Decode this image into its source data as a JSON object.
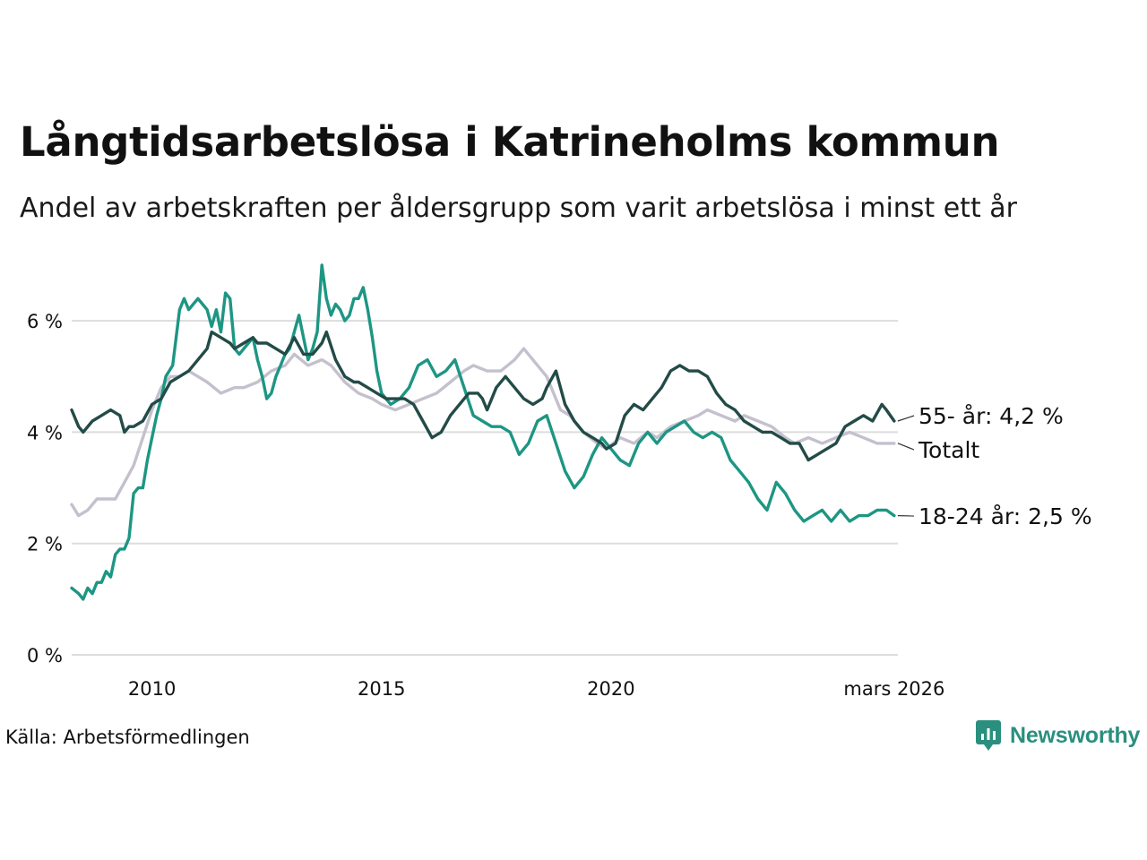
{
  "header": {
    "title": "Långtidsarbetslösa i Katrineholms kommun",
    "subtitle": "Andel av arbetskraften per åldersgrupp som varit arbetslösa i minst ett år"
  },
  "footer": {
    "source": "Källa: Arbetsförmedlingen",
    "brand": "Newsworthy"
  },
  "colors": {
    "total": "#c4c0cd",
    "age55": "#234b47",
    "age1824": "#1d9683",
    "grid": "#dddddd",
    "brand": "#2a8f7e"
  },
  "chart_data": {
    "type": "line",
    "title": "Långtidsarbetslösa i Katrineholms kommun",
    "xlabel": "",
    "ylabel": "",
    "xlim": [
      2008.25,
      2026.25
    ],
    "ylim": [
      0,
      7
    ],
    "grid": true,
    "legend": "direct labels at right end",
    "y_ticks": [
      {
        "value": 0,
        "label": "0 %"
      },
      {
        "value": 2,
        "label": "2 %"
      },
      {
        "value": 4,
        "label": "4 %"
      },
      {
        "value": 6,
        "label": "6 %"
      }
    ],
    "x_ticks": [
      {
        "value": 2010,
        "label": "2010"
      },
      {
        "value": 2015,
        "label": "2015"
      },
      {
        "value": 2020,
        "label": "2020"
      },
      {
        "value": 2026.17,
        "label": "mars 2026"
      }
    ],
    "series": [
      {
        "name": "Totalt",
        "label": "Totalt",
        "color": "#c4c0cd",
        "x": [
          2008.25,
          2008.4,
          2008.6,
          2008.8,
          2009.0,
          2009.2,
          2009.4,
          2009.6,
          2009.8,
          2010.0,
          2010.2,
          2010.4,
          2010.6,
          2010.8,
          2011.0,
          2011.2,
          2011.5,
          2011.8,
          2012.0,
          2012.3,
          2012.6,
          2012.9,
          2013.1,
          2013.4,
          2013.7,
          2013.9,
          2014.2,
          2014.5,
          2014.8,
          2015.0,
          2015.3,
          2015.6,
          2015.9,
          2016.2,
          2016.5,
          2016.8,
          2017.0,
          2017.3,
          2017.6,
          2017.9,
          2018.1,
          2018.4,
          2018.6,
          2018.9,
          2019.1,
          2019.4,
          2019.7,
          2019.9,
          2020.2,
          2020.5,
          2020.8,
          2021.0,
          2021.3,
          2021.6,
          2021.9,
          2022.1,
          2022.4,
          2022.7,
          2022.9,
          2023.2,
          2023.5,
          2023.8,
          2024.0,
          2024.3,
          2024.6,
          2024.9,
          2025.2,
          2025.5,
          2025.8,
          2026.0,
          2026.17
        ],
        "values": [
          2.7,
          2.5,
          2.6,
          2.8,
          2.8,
          2.8,
          3.1,
          3.4,
          3.9,
          4.4,
          4.8,
          5.0,
          5.0,
          5.1,
          5.0,
          4.9,
          4.7,
          4.8,
          4.8,
          4.9,
          5.1,
          5.2,
          5.4,
          5.2,
          5.3,
          5.2,
          4.9,
          4.7,
          4.6,
          4.5,
          4.4,
          4.5,
          4.6,
          4.7,
          4.9,
          5.1,
          5.2,
          5.1,
          5.1,
          5.3,
          5.5,
          5.2,
          5.0,
          4.4,
          4.3,
          4.0,
          3.8,
          3.7,
          3.9,
          3.8,
          4.0,
          3.9,
          4.1,
          4.2,
          4.3,
          4.4,
          4.3,
          4.2,
          4.3,
          4.2,
          4.1,
          3.9,
          3.8,
          3.9,
          3.8,
          3.9,
          4.0,
          3.9,
          3.8,
          3.8,
          3.8
        ]
      },
      {
        "name": "55- år",
        "label": "55- år: 4,2 %",
        "color": "#234b47",
        "x": [
          2008.25,
          2008.4,
          2008.5,
          2008.7,
          2008.9,
          2009.1,
          2009.3,
          2009.4,
          2009.5,
          2009.6,
          2009.8,
          2010.0,
          2010.2,
          2010.4,
          2010.6,
          2010.8,
          2011.0,
          2011.2,
          2011.3,
          2011.5,
          2011.7,
          2011.8,
          2012.0,
          2012.2,
          2012.3,
          2012.5,
          2012.7,
          2012.9,
          2013.1,
          2013.3,
          2013.5,
          2013.7,
          2013.8,
          2014.0,
          2014.2,
          2014.4,
          2014.5,
          2014.7,
          2014.9,
          2015.1,
          2015.3,
          2015.5,
          2015.7,
          2015.9,
          2016.1,
          2016.3,
          2016.5,
          2016.7,
          2016.9,
          2017.1,
          2017.2,
          2017.3,
          2017.5,
          2017.7,
          2017.9,
          2018.1,
          2018.3,
          2018.5,
          2018.6,
          2018.8,
          2019.0,
          2019.2,
          2019.4,
          2019.6,
          2019.8,
          2019.9,
          2020.1,
          2020.3,
          2020.5,
          2020.7,
          2020.9,
          2021.1,
          2021.3,
          2021.5,
          2021.7,
          2021.9,
          2022.1,
          2022.3,
          2022.5,
          2022.7,
          2022.9,
          2023.1,
          2023.3,
          2023.5,
          2023.7,
          2023.9,
          2024.1,
          2024.3,
          2024.5,
          2024.7,
          2024.9,
          2025.1,
          2025.3,
          2025.5,
          2025.7,
          2025.9,
          2026.0,
          2026.17
        ],
        "values": [
          4.4,
          4.1,
          4.0,
          4.2,
          4.3,
          4.4,
          4.3,
          4.0,
          4.1,
          4.1,
          4.2,
          4.5,
          4.6,
          4.9,
          5.0,
          5.1,
          5.3,
          5.5,
          5.8,
          5.7,
          5.6,
          5.5,
          5.6,
          5.7,
          5.6,
          5.6,
          5.5,
          5.4,
          5.7,
          5.4,
          5.4,
          5.6,
          5.8,
          5.3,
          5.0,
          4.9,
          4.9,
          4.8,
          4.7,
          4.6,
          4.6,
          4.6,
          4.5,
          4.2,
          3.9,
          4.0,
          4.3,
          4.5,
          4.7,
          4.7,
          4.6,
          4.4,
          4.8,
          5.0,
          4.8,
          4.6,
          4.5,
          4.6,
          4.8,
          5.1,
          4.5,
          4.2,
          4.0,
          3.9,
          3.8,
          3.7,
          3.8,
          4.3,
          4.5,
          4.4,
          4.6,
          4.8,
          5.1,
          5.2,
          5.1,
          5.1,
          5.0,
          4.7,
          4.5,
          4.4,
          4.2,
          4.1,
          4.0,
          4.0,
          3.9,
          3.8,
          3.8,
          3.5,
          3.6,
          3.7,
          3.8,
          4.1,
          4.2,
          4.3,
          4.2,
          4.5,
          4.4,
          4.2
        ]
      },
      {
        "name": "18-24 år",
        "label": "18-24 år: 2,5 %",
        "color": "#1d9683",
        "x": [
          2008.25,
          2008.4,
          2008.5,
          2008.6,
          2008.7,
          2008.8,
          2008.9,
          2009.0,
          2009.1,
          2009.2,
          2009.3,
          2009.4,
          2009.5,
          2009.6,
          2009.7,
          2009.8,
          2009.9,
          2010.0,
          2010.1,
          2010.2,
          2010.3,
          2010.45,
          2010.6,
          2010.7,
          2010.8,
          2010.9,
          2011.0,
          2011.1,
          2011.2,
          2011.3,
          2011.4,
          2011.5,
          2011.6,
          2011.7,
          2011.8,
          2011.9,
          2012.0,
          2012.1,
          2012.2,
          2012.3,
          2012.4,
          2012.5,
          2012.6,
          2012.7,
          2012.8,
          2012.9,
          2013.0,
          2013.1,
          2013.2,
          2013.3,
          2013.4,
          2013.5,
          2013.6,
          2013.7,
          2013.8,
          2013.9,
          2014.0,
          2014.1,
          2014.2,
          2014.3,
          2014.4,
          2014.5,
          2014.6,
          2014.7,
          2014.8,
          2014.9,
          2015.0,
          2015.2,
          2015.4,
          2015.6,
          2015.8,
          2016.0,
          2016.2,
          2016.4,
          2016.6,
          2016.8,
          2017.0,
          2017.2,
          2017.4,
          2017.6,
          2017.8,
          2018.0,
          2018.2,
          2018.4,
          2018.6,
          2018.8,
          2019.0,
          2019.2,
          2019.4,
          2019.6,
          2019.8,
          2020.0,
          2020.2,
          2020.4,
          2020.6,
          2020.8,
          2021.0,
          2021.2,
          2021.4,
          2021.6,
          2021.8,
          2022.0,
          2022.2,
          2022.4,
          2022.6,
          2022.8,
          2023.0,
          2023.2,
          2023.4,
          2023.6,
          2023.8,
          2024.0,
          2024.2,
          2024.4,
          2024.6,
          2024.8,
          2025.0,
          2025.2,
          2025.4,
          2025.6,
          2025.8,
          2026.0,
          2026.17
        ],
        "values": [
          1.2,
          1.1,
          1.0,
          1.2,
          1.1,
          1.3,
          1.3,
          1.5,
          1.4,
          1.8,
          1.9,
          1.9,
          2.1,
          2.9,
          3.0,
          3.0,
          3.5,
          3.9,
          4.3,
          4.6,
          5.0,
          5.2,
          6.2,
          6.4,
          6.2,
          6.3,
          6.4,
          6.3,
          6.2,
          5.9,
          6.2,
          5.8,
          6.5,
          6.4,
          5.5,
          5.4,
          5.5,
          5.6,
          5.7,
          5.3,
          5.0,
          4.6,
          4.7,
          5.0,
          5.2,
          5.4,
          5.5,
          5.8,
          6.1,
          5.7,
          5.3,
          5.5,
          5.8,
          7.0,
          6.4,
          6.1,
          6.3,
          6.2,
          6.0,
          6.1,
          6.4,
          6.4,
          6.6,
          6.2,
          5.7,
          5.1,
          4.7,
          4.5,
          4.6,
          4.8,
          5.2,
          5.3,
          5.0,
          5.1,
          5.3,
          4.8,
          4.3,
          4.2,
          4.1,
          4.1,
          4.0,
          3.6,
          3.8,
          4.2,
          4.3,
          3.8,
          3.3,
          3.0,
          3.2,
          3.6,
          3.9,
          3.7,
          3.5,
          3.4,
          3.8,
          4.0,
          3.8,
          4.0,
          4.1,
          4.2,
          4.0,
          3.9,
          4.0,
          3.9,
          3.5,
          3.3,
          3.1,
          2.8,
          2.6,
          3.1,
          2.9,
          2.6,
          2.4,
          2.5,
          2.6,
          2.4,
          2.6,
          2.4,
          2.5,
          2.5,
          2.6,
          2.6,
          2.5
        ]
      }
    ]
  }
}
